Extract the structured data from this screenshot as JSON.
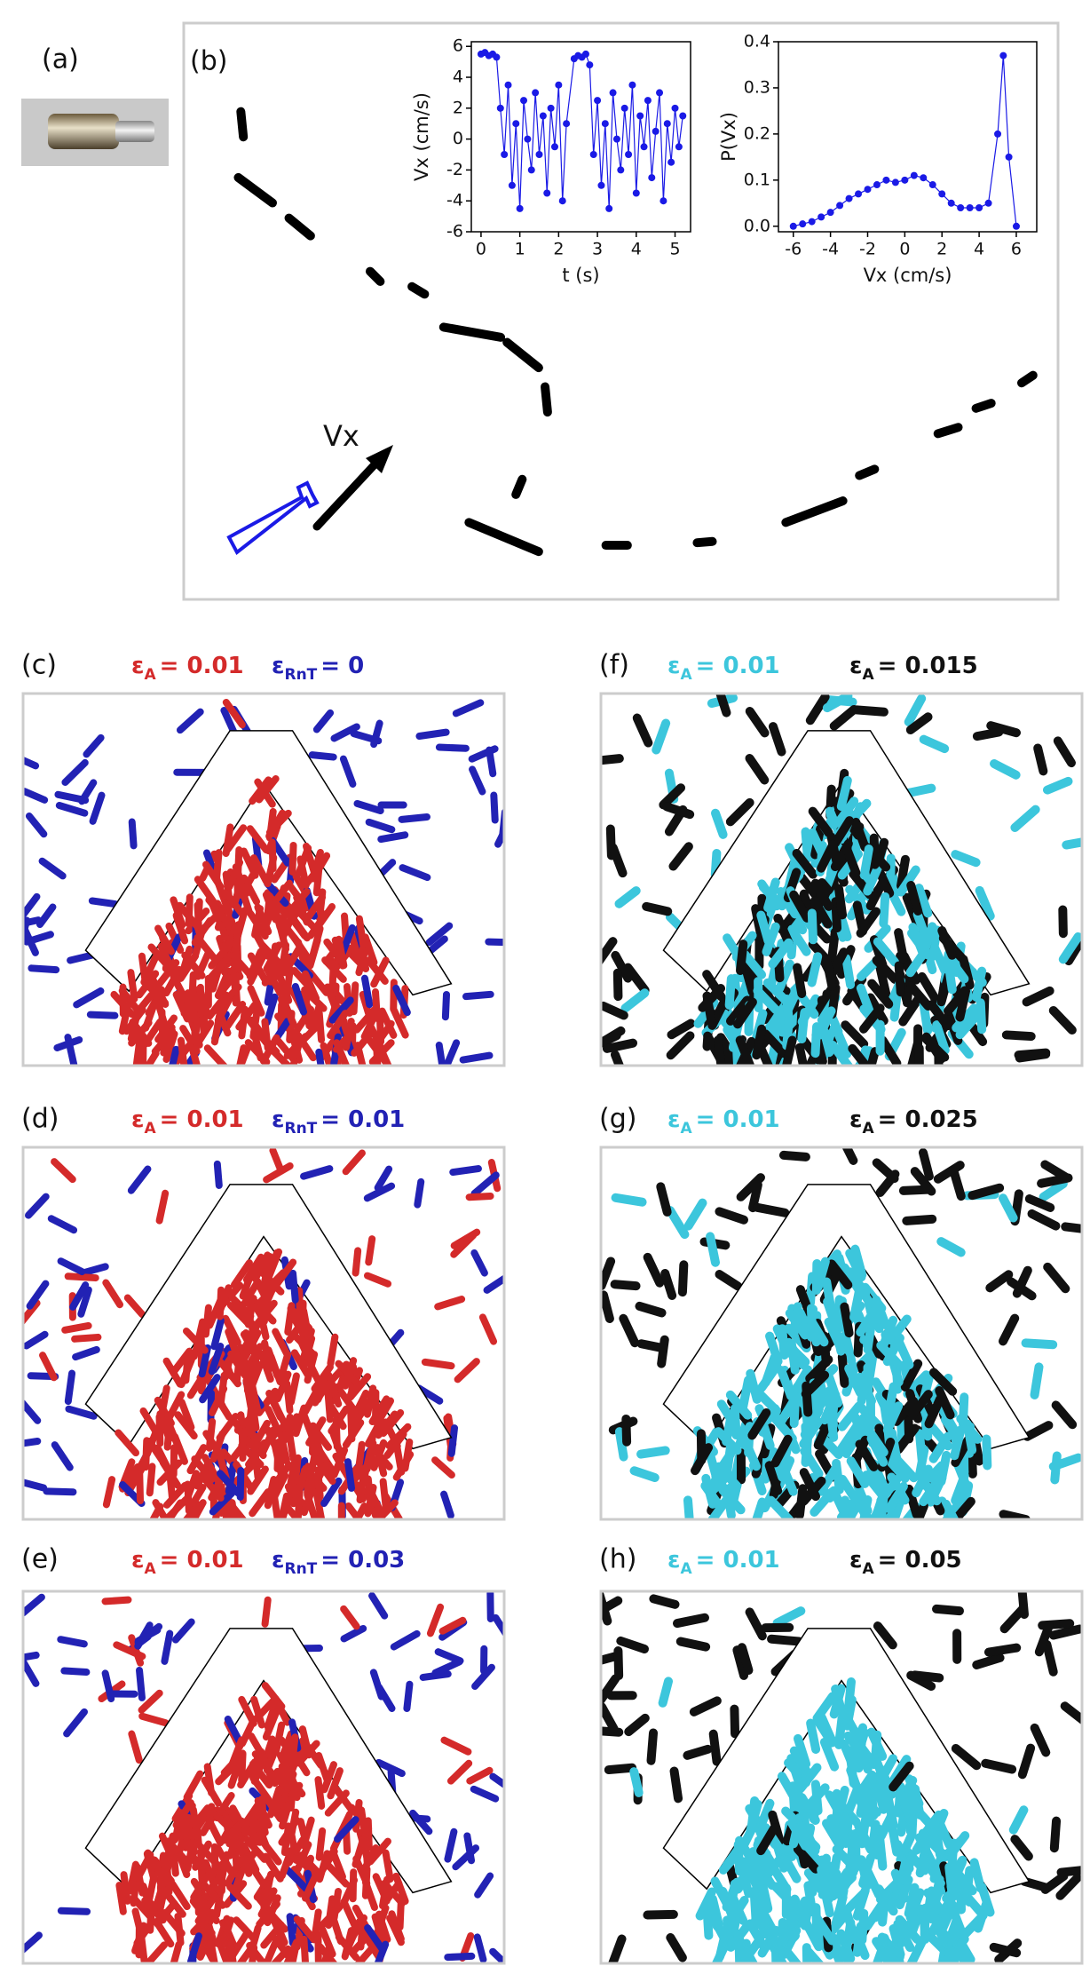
{
  "panel_a": {
    "label": "(a)"
  },
  "panel_b": {
    "label": "(b)",
    "arrow_label": "Vx"
  },
  "chart_data": [
    {
      "type": "line",
      "x_label": "t (s)",
      "y_label": "Vx (cm/s)",
      "color": "#1a1ae6",
      "markers": true,
      "x": [
        0.0,
        0.1,
        0.2,
        0.3,
        0.4,
        0.5,
        0.6,
        0.7,
        0.8,
        0.9,
        1.0,
        1.1,
        1.2,
        1.3,
        1.4,
        1.5,
        1.6,
        1.7,
        1.8,
        1.9,
        2.0,
        2.1,
        2.2,
        2.4,
        2.5,
        2.6,
        2.7,
        2.8,
        2.9,
        3.0,
        3.1,
        3.2,
        3.3,
        3.4,
        3.5,
        3.6,
        3.7,
        3.8,
        3.9,
        4.0,
        4.1,
        4.2,
        4.3,
        4.4,
        4.5,
        4.6,
        4.7,
        4.8,
        4.9,
        5.0,
        5.1,
        5.2
      ],
      "values": [
        5.5,
        5.6,
        5.4,
        5.5,
        5.3,
        2,
        -1,
        3.5,
        -3,
        1,
        -4.5,
        2.5,
        0,
        -2,
        3,
        -1,
        1.5,
        -3.5,
        2,
        -0.5,
        3.5,
        -4,
        1,
        5.2,
        5.4,
        5.3,
        5.5,
        4.8,
        -1,
        2.5,
        -3,
        1,
        -4.5,
        3,
        0,
        -2,
        2,
        -1,
        3.5,
        -3.5,
        1.5,
        -0.5,
        2.5,
        -2.5,
        0.5,
        3,
        -4,
        1,
        -1.5,
        2,
        -0.5,
        1.5
      ],
      "xlim": [
        -0.25,
        5.4
      ],
      "ylim": [
        -6,
        6.3
      ],
      "xticks": [
        0,
        1,
        2,
        3,
        4,
        5
      ],
      "yticks": [
        -6,
        -4,
        -2,
        0,
        2,
        4,
        6
      ]
    },
    {
      "type": "line",
      "x_label": "Vx (cm/s)",
      "y_label": "P(Vx)",
      "color": "#1a1ae6",
      "markers": true,
      "x": [
        -6,
        -5.5,
        -5,
        -4.5,
        -4,
        -3.5,
        -3,
        -2.5,
        -2,
        -1.5,
        -1,
        -0.5,
        0,
        0.5,
        1,
        1.5,
        2,
        2.5,
        3,
        3.5,
        4,
        4.5,
        5,
        5.3,
        5.6,
        6
      ],
      "values": [
        0.0,
        0.005,
        0.01,
        0.02,
        0.03,
        0.045,
        0.06,
        0.07,
        0.08,
        0.09,
        0.1,
        0.095,
        0.1,
        0.11,
        0.105,
        0.09,
        0.07,
        0.05,
        0.04,
        0.04,
        0.04,
        0.05,
        0.2,
        0.37,
        0.15,
        0.0
      ],
      "xlim": [
        -6.8,
        7.1
      ],
      "ylim": [
        -0.012,
        0.4
      ],
      "xticks": [
        -6,
        -4,
        -2,
        0,
        2,
        4,
        6
      ],
      "yticks": [
        {
          "value": 0,
          "label": "0.0"
        },
        0.1,
        0.2,
        0.3,
        0.4
      ]
    }
  ],
  "snapshots": [
    {
      "label": "(c)",
      "params": [
        {
          "symbol": "ε",
          "sub": "A",
          "text": "= 0.01",
          "color": "#d42a2a"
        },
        {
          "symbol": "ε",
          "sub": "RnT",
          "text": "= 0",
          "color": "#2222b4"
        }
      ]
    },
    {
      "label": "(d)",
      "params": [
        {
          "symbol": "ε",
          "sub": "A",
          "text": "= 0.01",
          "color": "#d42a2a"
        },
        {
          "symbol": "ε",
          "sub": "RnT",
          "text": "= 0.01",
          "color": "#2222b4"
        }
      ]
    },
    {
      "label": "(e)",
      "params": [
        {
          "symbol": "ε",
          "sub": "A",
          "text": "= 0.01",
          "color": "#d42a2a"
        },
        {
          "symbol": "ε",
          "sub": "RnT",
          "text": "= 0.03",
          "color": "#2222b4"
        }
      ]
    },
    {
      "label": "(f)",
      "params": [
        {
          "symbol": "ε",
          "sub": "A",
          "text": "= 0.01",
          "color": "#3cc6dc"
        },
        {
          "symbol": "ε",
          "sub": "A",
          "text": "= 0.015",
          "color": "#111111"
        }
      ]
    },
    {
      "label": "(g)",
      "params": [
        {
          "symbol": "ε",
          "sub": "A",
          "text": "= 0.01",
          "color": "#3cc6dc"
        },
        {
          "symbol": "ε",
          "sub": "A",
          "text": "= 0.025",
          "color": "#111111"
        }
      ]
    },
    {
      "label": "(h)",
      "params": [
        {
          "symbol": "ε",
          "sub": "A",
          "text": "= 0.01",
          "color": "#3cc6dc"
        },
        {
          "symbol": "ε",
          "sub": "A",
          "text": "= 0.05",
          "color": "#111111"
        }
      ]
    }
  ]
}
